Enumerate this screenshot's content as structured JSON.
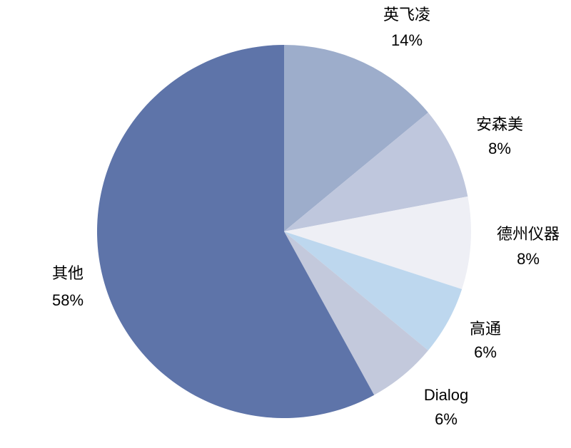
{
  "chart_data": {
    "type": "pie",
    "categories": [
      "英飞凌",
      "安森美",
      "德州仪器",
      "高通",
      "Dialog",
      "其他"
    ],
    "values": [
      14,
      8,
      8,
      6,
      6,
      58
    ],
    "value_labels": [
      "14%",
      "8%",
      "8%",
      "6%",
      "6%",
      "58%"
    ],
    "colors": [
      "#9dadcb",
      "#bfc7dd",
      "#eeeff5",
      "#bdd7ee",
      "#c3c9dc",
      "#5e74a9"
    ]
  }
}
